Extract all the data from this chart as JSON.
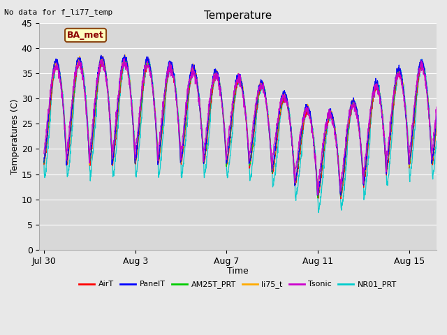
{
  "title": "Temperature",
  "xlabel": "Time",
  "ylabel": "Temperatures (C)",
  "note": "No data for f_li77_temp",
  "legend_label": "BA_met",
  "ylim": [
    0,
    45
  ],
  "yticks": [
    0,
    5,
    10,
    15,
    20,
    25,
    30,
    35,
    40,
    45
  ],
  "fig_bg_color": "#e8e8e8",
  "plot_bg_color": "#d8d8d8",
  "grid_color": "#ffffff",
  "series": [
    {
      "name": "AirT",
      "color": "#ff0000"
    },
    {
      "name": "PanelT",
      "color": "#0000ff"
    },
    {
      "name": "AM25T_PRT",
      "color": "#00cc00"
    },
    {
      "name": "li75_t",
      "color": "#ffaa00"
    },
    {
      "name": "Tsonic",
      "color": "#cc00cc"
    },
    {
      "name": "NR01_PRT",
      "color": "#00cccc"
    }
  ],
  "tick_positions": [
    0,
    4,
    8,
    12,
    16
  ],
  "tick_labels": [
    "Jul 30",
    "Aug 3",
    "Aug 7",
    "Aug 11",
    "Aug 15"
  ],
  "total_days": 17.2,
  "n_points": 2000
}
